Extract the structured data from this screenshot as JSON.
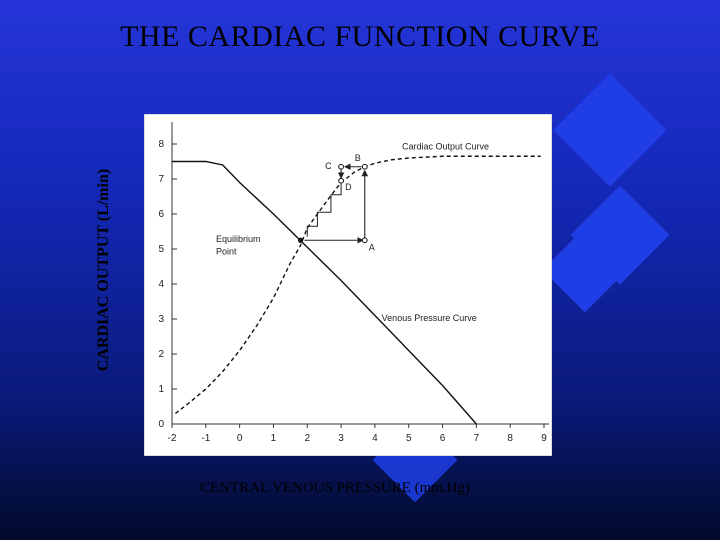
{
  "slide": {
    "title": "THE CARDIAC FUNCTION CURVE",
    "y_axis_title": "CARDIAC OUTPUT (L/min)",
    "x_axis_title": "CENTRAL VENOUS  PRESSURE (mm.Hg)"
  },
  "figure": {
    "x_ticks": [
      -2,
      -1,
      0,
      1,
      2,
      3,
      4,
      5,
      6,
      7,
      8,
      9
    ],
    "x_tick_labels": [
      "-2",
      "-1",
      "0",
      "1",
      "2",
      "3",
      "4",
      "5",
      "6",
      "7",
      "8",
      "9"
    ],
    "y_ticks": [
      0,
      1,
      2,
      3,
      4,
      5,
      6,
      7,
      8
    ],
    "y_tick_labels": [
      "0",
      "1",
      "2",
      "3",
      "4",
      "5",
      "6",
      "7",
      "8"
    ],
    "xlim": [
      -2,
      9
    ],
    "ylim": [
      0,
      8
    ],
    "cardiac_output_curve": {
      "name": "Cardiac Output Curve",
      "x": [
        -1.9,
        -1.5,
        -1.0,
        -0.5,
        0,
        0.5,
        1.0,
        1.5,
        1.8,
        2.0,
        2.3,
        2.6,
        3.0,
        3.4,
        3.7,
        4.0,
        4.5,
        5.0,
        6.0,
        7.0,
        8.0,
        8.9
      ],
      "y": [
        0.3,
        0.6,
        1.0,
        1.5,
        2.1,
        2.8,
        3.6,
        4.6,
        5.1,
        5.6,
        6.0,
        6.4,
        6.9,
        7.2,
        7.35,
        7.45,
        7.55,
        7.6,
        7.65,
        7.65,
        7.65,
        7.65
      ]
    },
    "venous_pressure_curve": {
      "name": "Venous Pressure Curve",
      "x": [
        -2.0,
        -1.0,
        -0.5,
        0,
        1.0,
        2.0,
        3.0,
        4.0,
        5.0,
        6.0,
        7.0
      ],
      "y": [
        7.5,
        7.5,
        7.4,
        6.9,
        6.0,
        5.05,
        4.1,
        3.1,
        2.1,
        1.1,
        0.0
      ]
    },
    "points": [
      {
        "label": "A",
        "x": 3.7,
        "y": 5.25
      },
      {
        "label": "B",
        "x": 3.7,
        "y": 7.35
      },
      {
        "label": "C",
        "x": 3.0,
        "y": 7.35
      },
      {
        "label": "D",
        "x": 3.0,
        "y": 6.95
      }
    ],
    "equilibrium": {
      "label_line1": "Equilibrium",
      "label_line2": "Point",
      "x": 1.8,
      "y": 5.25
    },
    "step_path": {
      "x": [
        3.0,
        3.0,
        2.7,
        2.7,
        2.3,
        2.3,
        2.0,
        2.0
      ],
      "y": [
        6.95,
        6.55,
        6.55,
        6.05,
        6.05,
        5.65,
        5.65,
        5.35
      ]
    }
  }
}
